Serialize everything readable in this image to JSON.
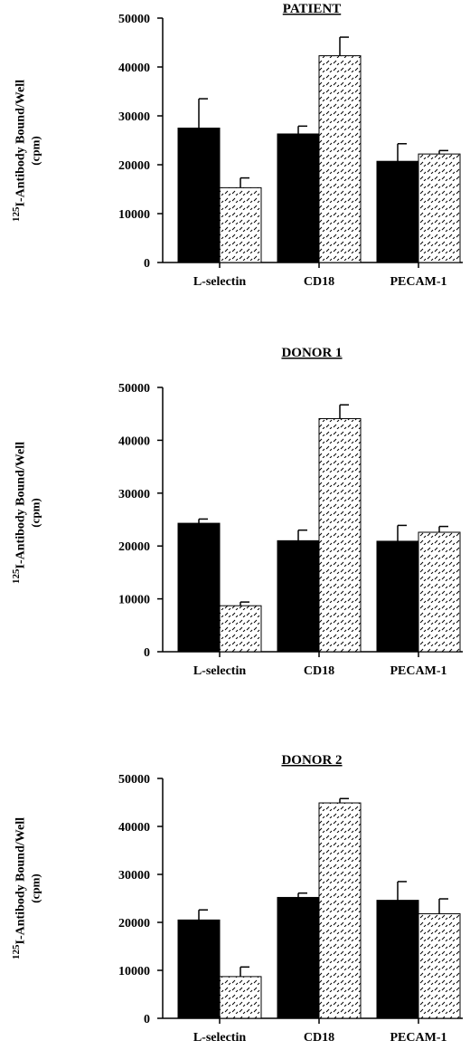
{
  "chart_data": [
    {
      "type": "bar",
      "title": "PATIENT",
      "ylabel_sup": "125",
      "ylabel_main": "I-Antibody Bound/Well",
      "ylabel_unit": "(cpm)",
      "categories": [
        "L-selectin",
        "CD18",
        "PECAM-1"
      ],
      "ylim": [
        0,
        50000
      ],
      "yticks": [
        "0",
        "10000",
        "20000",
        "30000",
        "40000",
        "50000"
      ],
      "series": [
        {
          "fill": "solid-black",
          "values": [
            27500,
            26300,
            20700
          ],
          "errors": [
            6000,
            1600,
            3600
          ]
        },
        {
          "fill": "hatched",
          "values": [
            15300,
            42300,
            22200
          ],
          "errors": [
            2000,
            3800,
            700
          ]
        }
      ]
    },
    {
      "type": "bar",
      "title": "DONOR 1",
      "ylabel_sup": "125",
      "ylabel_main": "I-Antibody Bound/Well",
      "ylabel_unit": "(cpm)",
      "categories": [
        "L-selectin",
        "CD18",
        "PECAM-1"
      ],
      "ylim": [
        0,
        50000
      ],
      "yticks": [
        "0",
        "10000",
        "20000",
        "30000",
        "40000",
        "50000"
      ],
      "series": [
        {
          "fill": "solid-black",
          "values": [
            24300,
            21000,
            20900
          ],
          "errors": [
            800,
            2000,
            3000
          ]
        },
        {
          "fill": "hatched",
          "values": [
            8700,
            44100,
            22600
          ],
          "errors": [
            700,
            2600,
            1100
          ]
        }
      ]
    },
    {
      "type": "bar",
      "title": "DONOR 2",
      "ylabel_sup": "125",
      "ylabel_main": "I-Antibody Bound/Well",
      "ylabel_unit": "(cpm)",
      "categories": [
        "L-selectin",
        "CD18",
        "PECAM-1"
      ],
      "ylim": [
        0,
        50000
      ],
      "yticks": [
        "0",
        "10000",
        "20000",
        "30000",
        "40000",
        "50000"
      ],
      "series": [
        {
          "fill": "solid-black",
          "values": [
            20500,
            25200,
            24600
          ],
          "errors": [
            2100,
            900,
            3900
          ]
        },
        {
          "fill": "hatched",
          "values": [
            8700,
            44900,
            21800
          ],
          "errors": [
            2000,
            900,
            3100
          ]
        }
      ]
    }
  ]
}
